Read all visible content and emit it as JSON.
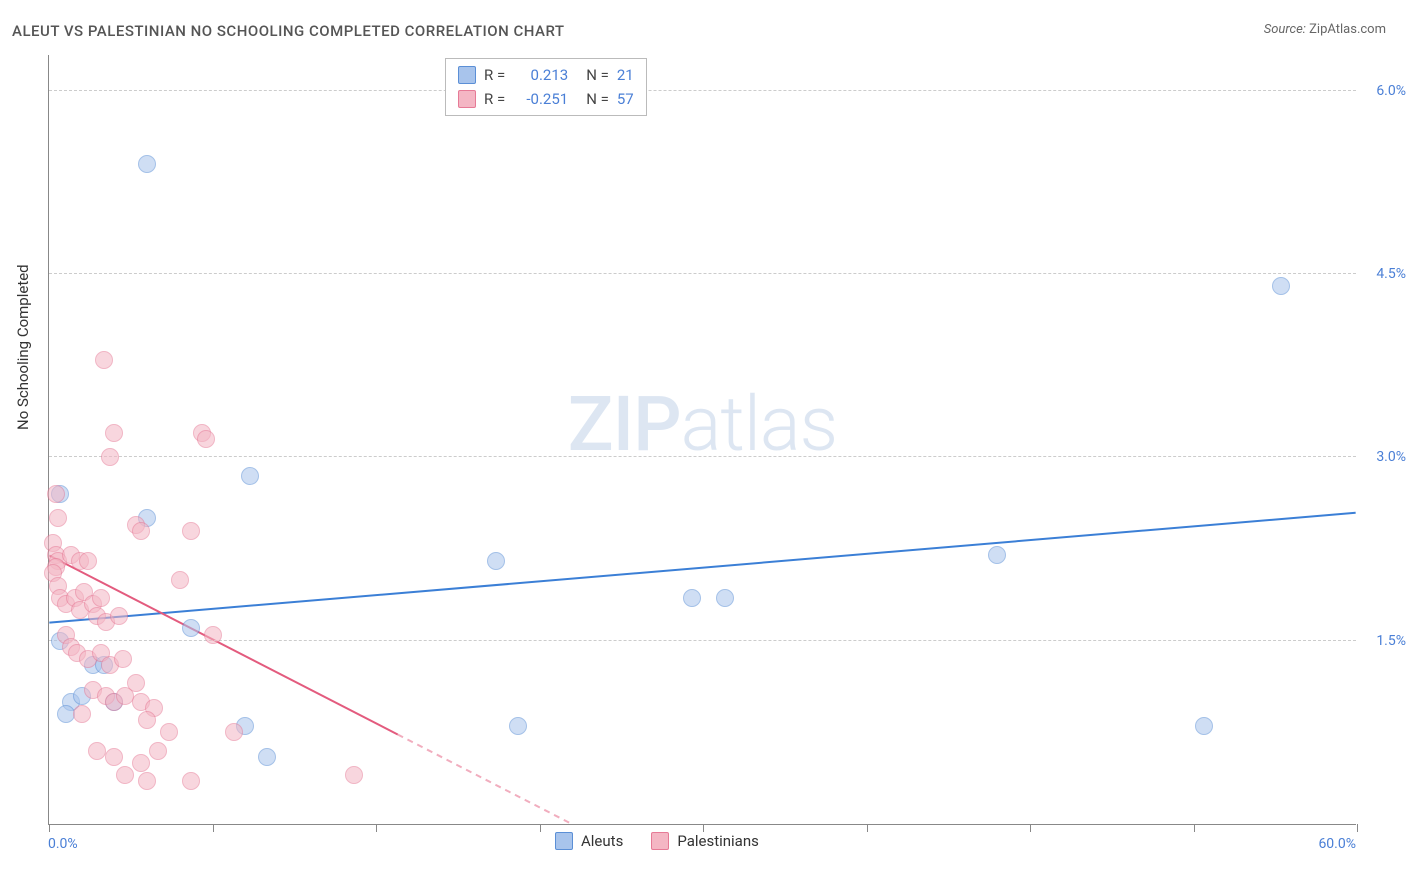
{
  "title": "ALEUT VS PALESTINIAN NO SCHOOLING COMPLETED CORRELATION CHART",
  "source_label": "Source:",
  "source_name": "ZipAtlas.com",
  "watermark_zip": "ZIP",
  "watermark_atlas": "atlas",
  "ylabel": "No Schooling Completed",
  "chart": {
    "type": "scatter",
    "background_color": "#ffffff",
    "grid_color": "#cccccc",
    "axis_color": "#888888",
    "x_min": 0,
    "x_max": 60,
    "y_min": 0,
    "y_max": 6.3,
    "x_tick_positions": [
      0,
      7.5,
      15,
      22.5,
      30,
      37.5,
      45,
      52.5,
      60
    ],
    "x_tick_labels_shown": {
      "0": "0.0%",
      "60": "60.0%"
    },
    "y_gridlines": [
      1.5,
      3.0,
      4.5,
      6.0
    ],
    "y_tick_labels": [
      "1.5%",
      "3.0%",
      "4.5%",
      "6.0%"
    ],
    "axis_label_color": "#4a7fd6",
    "marker_radius": 9,
    "marker_opacity": 0.55,
    "series": [
      {
        "name": "Aleuts",
        "fill_color": "#a8c4ec",
        "stroke_color": "#5b8fd6",
        "R": "0.213",
        "N": "21",
        "trend": {
          "x1": 0,
          "y1": 1.65,
          "x2": 60,
          "y2": 2.55,
          "color": "#3b7fd6",
          "dash_after_x": null
        },
        "points": [
          {
            "x": 4.5,
            "y": 5.4
          },
          {
            "x": 56.5,
            "y": 4.4
          },
          {
            "x": 9.2,
            "y": 2.85
          },
          {
            "x": 4.5,
            "y": 2.5
          },
          {
            "x": 0.5,
            "y": 2.7
          },
          {
            "x": 43.5,
            "y": 2.2
          },
          {
            "x": 20.5,
            "y": 2.15
          },
          {
            "x": 29.5,
            "y": 1.85
          },
          {
            "x": 31.0,
            "y": 1.85
          },
          {
            "x": 6.5,
            "y": 1.6
          },
          {
            "x": 0.5,
            "y": 1.5
          },
          {
            "x": 2.0,
            "y": 1.3
          },
          {
            "x": 1.0,
            "y": 1.0
          },
          {
            "x": 3.0,
            "y": 1.0
          },
          {
            "x": 21.5,
            "y": 0.8
          },
          {
            "x": 53.0,
            "y": 0.8
          },
          {
            "x": 9.0,
            "y": 0.8
          },
          {
            "x": 10.0,
            "y": 0.55
          },
          {
            "x": 0.8,
            "y": 0.9
          },
          {
            "x": 1.5,
            "y": 1.05
          },
          {
            "x": 2.5,
            "y": 1.3
          }
        ]
      },
      {
        "name": "Palestinians",
        "fill_color": "#f4b6c4",
        "stroke_color": "#e67a96",
        "R": "-0.251",
        "N": "57",
        "trend": {
          "x1": 0,
          "y1": 2.2,
          "x2": 24,
          "y2": 0.0,
          "color": "#e35b7e",
          "dash_after_x": 16
        },
        "points": [
          {
            "x": 2.5,
            "y": 3.8
          },
          {
            "x": 3.0,
            "y": 3.2
          },
          {
            "x": 7.0,
            "y": 3.2
          },
          {
            "x": 7.2,
            "y": 3.15
          },
          {
            "x": 2.8,
            "y": 3.0
          },
          {
            "x": 0.3,
            "y": 2.7
          },
          {
            "x": 0.4,
            "y": 2.5
          },
          {
            "x": 0.2,
            "y": 2.3
          },
          {
            "x": 0.3,
            "y": 2.2
          },
          {
            "x": 0.4,
            "y": 2.15
          },
          {
            "x": 0.3,
            "y": 2.1
          },
          {
            "x": 0.2,
            "y": 2.05
          },
          {
            "x": 0.4,
            "y": 1.95
          },
          {
            "x": 1.0,
            "y": 2.2
          },
          {
            "x": 1.4,
            "y": 2.15
          },
          {
            "x": 1.8,
            "y": 2.15
          },
          {
            "x": 4.0,
            "y": 2.45
          },
          {
            "x": 4.2,
            "y": 2.4
          },
          {
            "x": 6.5,
            "y": 2.4
          },
          {
            "x": 0.5,
            "y": 1.85
          },
          {
            "x": 0.8,
            "y": 1.8
          },
          {
            "x": 1.2,
            "y": 1.85
          },
          {
            "x": 1.4,
            "y": 1.75
          },
          {
            "x": 1.6,
            "y": 1.9
          },
          {
            "x": 2.0,
            "y": 1.8
          },
          {
            "x": 2.4,
            "y": 1.85
          },
          {
            "x": 2.2,
            "y": 1.7
          },
          {
            "x": 2.6,
            "y": 1.65
          },
          {
            "x": 3.2,
            "y": 1.7
          },
          {
            "x": 7.5,
            "y": 1.55
          },
          {
            "x": 0.8,
            "y": 1.55
          },
          {
            "x": 1.0,
            "y": 1.45
          },
          {
            "x": 1.3,
            "y": 1.4
          },
          {
            "x": 1.8,
            "y": 1.35
          },
          {
            "x": 2.4,
            "y": 1.4
          },
          {
            "x": 2.8,
            "y": 1.3
          },
          {
            "x": 3.4,
            "y": 1.35
          },
          {
            "x": 4.0,
            "y": 1.15
          },
          {
            "x": 2.0,
            "y": 1.1
          },
          {
            "x": 2.6,
            "y": 1.05
          },
          {
            "x": 3.0,
            "y": 1.0
          },
          {
            "x": 3.5,
            "y": 1.05
          },
          {
            "x": 4.2,
            "y": 1.0
          },
          {
            "x": 4.8,
            "y": 0.95
          },
          {
            "x": 1.5,
            "y": 0.9
          },
          {
            "x": 4.5,
            "y": 0.85
          },
          {
            "x": 5.5,
            "y": 0.75
          },
          {
            "x": 8.5,
            "y": 0.75
          },
          {
            "x": 3.0,
            "y": 0.55
          },
          {
            "x": 4.2,
            "y": 0.5
          },
          {
            "x": 3.5,
            "y": 0.4
          },
          {
            "x": 4.5,
            "y": 0.35
          },
          {
            "x": 6.5,
            "y": 0.35
          },
          {
            "x": 14.0,
            "y": 0.4
          },
          {
            "x": 2.2,
            "y": 0.6
          },
          {
            "x": 5.0,
            "y": 0.6
          },
          {
            "x": 6.0,
            "y": 2.0
          }
        ]
      }
    ]
  },
  "legend_labels": {
    "r": "R",
    "n": "N",
    "eq": "="
  },
  "bottom_legend": [
    "Aleuts",
    "Palestinians"
  ]
}
